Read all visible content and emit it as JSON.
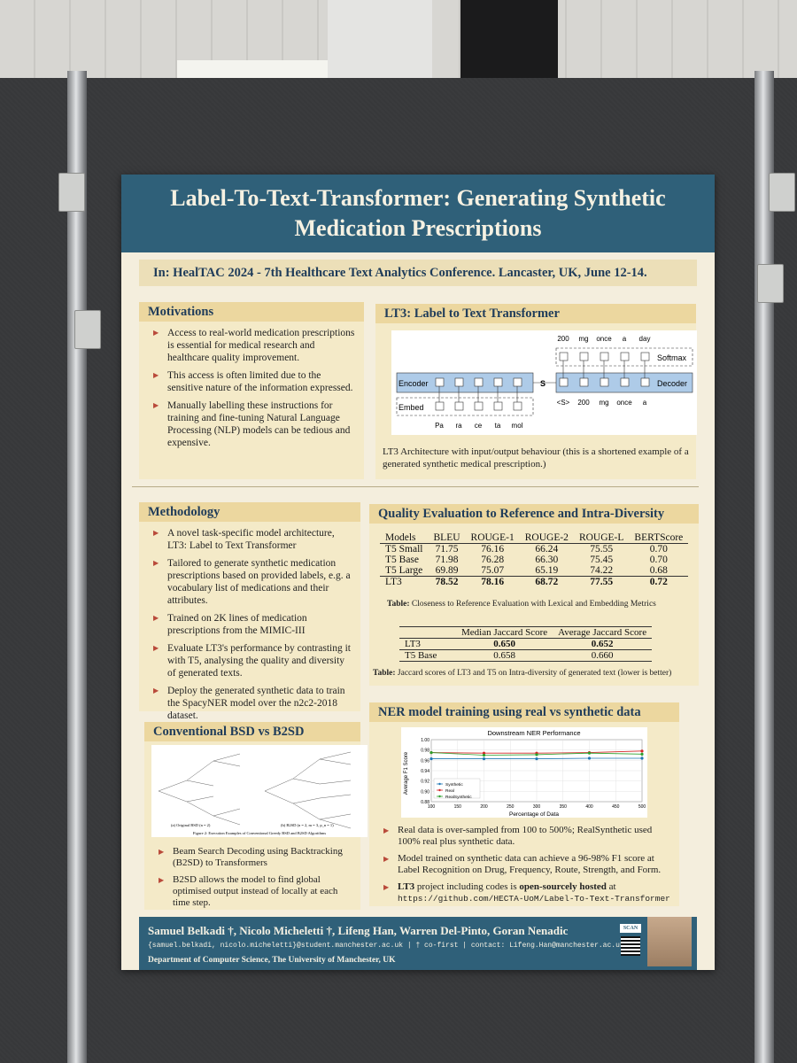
{
  "poster": {
    "title": "Label-To-Text-Transformer: Generating Synthetic Medication Prescriptions",
    "conference": "In: HealTAC 2024 - 7th Healthcare Text Analytics Conference. Lancaster, UK, June 12-14."
  },
  "motivations": {
    "heading": "Motivations",
    "bullets": [
      "Access to real-world medication prescriptions is essential for medical research and healthcare quality improvement.",
      "This access is often limited due to the sensitive nature of the information expressed.",
      "Manually labelling these instructions for training and fine-tuning Natural Language Processing (NLP) models can be tedious and expensive."
    ]
  },
  "lt3": {
    "heading": "LT3: Label to Text Transformer",
    "diagram": {
      "encoder": "Encoder",
      "embed": "Embed",
      "s": "S",
      "decoder": "Decoder",
      "softmax": "Softmax",
      "inputs": [
        "Pa",
        "ra",
        "ce",
        "ta",
        "mol"
      ],
      "outputs": [
        "200",
        "mg",
        "once",
        "a",
        "day"
      ],
      "decoder_inputs": [
        "<S>",
        "200",
        "mg",
        "once",
        "a"
      ]
    },
    "caption": "LT3 Architecture with input/output behaviour (this is a shortened example of a generated synthetic medical prescription.)"
  },
  "methodology": {
    "heading": "Methodology",
    "bullets": [
      "A novel task-specific model architecture, LT3: Label to Text Transformer",
      "Tailored to generate synthetic medication prescriptions based on provided labels, e.g. a vocabulary list of medications and their attributes.",
      "Trained on 2K lines of medication prescriptions from the MIMIC-III",
      "Evaluate LT3's performance by contrasting it with T5, analysing the quality and diversity of generated texts.",
      "Deploy the generated synthetic data to train the SpacyNER model over the n2c2-2018 dataset."
    ]
  },
  "quality": {
    "heading": "Quality Evaluation to Reference and Intra-Diversity",
    "table1": {
      "headers": [
        "Models",
        "BLEU",
        "ROUGE-1",
        "ROUGE-2",
        "ROUGE-L",
        "BERTScore"
      ],
      "rows": [
        [
          "T5 Small",
          "71.75",
          "76.16",
          "66.24",
          "75.55",
          "0.70"
        ],
        [
          "T5 Base",
          "71.98",
          "76.28",
          "66.30",
          "75.45",
          "0.70"
        ],
        [
          "T5 Large",
          "69.89",
          "75.07",
          "65.19",
          "74.22",
          "0.68"
        ],
        [
          "LT3",
          "78.52",
          "78.16",
          "68.72",
          "77.55",
          "0.72"
        ]
      ],
      "caption_label": "Table:",
      "caption": "Closeness to Reference Evaluation with Lexical and Embedding Metrics"
    },
    "table2": {
      "headers": [
        "",
        "Median Jaccard Score",
        "Average Jaccard Score"
      ],
      "rows": [
        [
          "LT3",
          "0.650",
          "0.652"
        ],
        [
          "T5 Base",
          "0.658",
          "0.660"
        ]
      ],
      "caption_label": "Table:",
      "caption": "Jaccard scores of LT3 and T5 on Intra-diversity of generated text (lower is better)"
    }
  },
  "ner": {
    "heading": "NER model training using real vs synthetic data",
    "bullets": [
      "Real data is over-sampled from 100 to 500%; RealSynthetic used 100% real plus synthetic data.",
      "Model trained on synthetic data can achieve a 96-98% F1 score at Label Recognition on Drug, Frequency, Route, Strength, and Form."
    ],
    "oss_prefix": "LT3",
    "oss_mid": " project including codes is ",
    "oss_bold": "open-sourcely hosted",
    "oss_suffix": " at",
    "url": "https://github.com/HECTA-UoM/Label-To-Text-Transformer"
  },
  "chart_data": {
    "type": "line",
    "title": "Downstream NER Performance",
    "xlabel": "Percentage of Data",
    "ylabel": "Average F1 Score",
    "x": [
      100,
      200,
      300,
      400,
      500
    ],
    "xticks": [
      100,
      150,
      200,
      250,
      300,
      350,
      400,
      450,
      500
    ],
    "yticks": [
      0.88,
      0.9,
      0.92,
      0.94,
      0.96,
      0.98,
      1.0
    ],
    "ylim": [
      0.88,
      1.0
    ],
    "grid": true,
    "legend": "lower-left",
    "series": [
      {
        "name": "Synthetic",
        "color": "#1f77b4",
        "values": [
          0.963,
          0.963,
          0.963,
          0.964,
          0.964
        ]
      },
      {
        "name": "Real",
        "color": "#d62728",
        "values": [
          0.975,
          0.974,
          0.974,
          0.975,
          0.978
        ]
      },
      {
        "name": "RealSynthetic",
        "color": "#2ca02c",
        "values": [
          0.975,
          0.97,
          0.971,
          0.974,
          0.972
        ]
      }
    ]
  },
  "bsd": {
    "heading": "Conventional BSD vs B2SD",
    "sub_a": "(a) Original BSD (n = 2)",
    "sub_b": "(b) B2SD (n = 2, m = 3, p_n = 1)",
    "figure_caption": "Figure 2: Execution Examples of Conventional Greedy BSD and B2SD Algorithms",
    "bullets": [
      "Beam Search Decoding using Backtracking (B2SD) to Transformers",
      "B2SD allows the model to find global optimised output instead of locally at each time step."
    ]
  },
  "footer": {
    "authors": "Samuel Belkadi †, Nicolo Micheletti †, Lifeng Han, Warren Del-Pinto, Goran Nenadic",
    "emails": "{samuel.belkadi, nicolo.micheletti}@student.manchester.ac.uk | † co-first | contact: Lifeng.Han@manchester.ac.uk",
    "dept": "Department of Computer Science, The University of Manchester, UK",
    "scan": "SCAN ME"
  }
}
